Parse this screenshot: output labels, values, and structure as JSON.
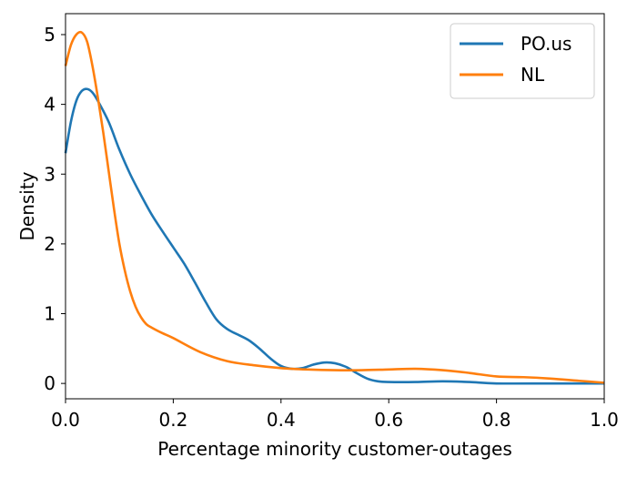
{
  "chart_data": {
    "type": "line",
    "title": "",
    "xlabel": "Percentage minority customer-outages",
    "ylabel": "Density",
    "xlim": [
      0.0,
      1.0
    ],
    "ylim": [
      -0.22,
      5.3
    ],
    "x_ticks": [
      0.0,
      0.2,
      0.4,
      0.6,
      0.8,
      1.0
    ],
    "x_tick_labels": [
      "0.0",
      "0.2",
      "0.4",
      "0.6",
      "0.8",
      "1.0"
    ],
    "y_ticks": [
      0,
      1,
      2,
      3,
      4,
      5
    ],
    "y_tick_labels": [
      "0",
      "1",
      "2",
      "3",
      "4",
      "5"
    ],
    "grid": false,
    "legend": "top-right",
    "series": [
      {
        "name": "PO.us",
        "color": "#1f77b4",
        "points": [
          [
            0.0,
            3.3
          ],
          [
            0.01,
            3.75
          ],
          [
            0.02,
            4.05
          ],
          [
            0.03,
            4.19
          ],
          [
            0.04,
            4.22
          ],
          [
            0.05,
            4.17
          ],
          [
            0.06,
            4.05
          ],
          [
            0.08,
            3.75
          ],
          [
            0.1,
            3.35
          ],
          [
            0.12,
            3.0
          ],
          [
            0.14,
            2.7
          ],
          [
            0.16,
            2.42
          ],
          [
            0.18,
            2.18
          ],
          [
            0.2,
            1.95
          ],
          [
            0.22,
            1.72
          ],
          [
            0.24,
            1.45
          ],
          [
            0.26,
            1.17
          ],
          [
            0.28,
            0.92
          ],
          [
            0.3,
            0.78
          ],
          [
            0.32,
            0.7
          ],
          [
            0.34,
            0.62
          ],
          [
            0.36,
            0.5
          ],
          [
            0.38,
            0.36
          ],
          [
            0.4,
            0.25
          ],
          [
            0.42,
            0.21
          ],
          [
            0.44,
            0.22
          ],
          [
            0.46,
            0.27
          ],
          [
            0.48,
            0.3
          ],
          [
            0.5,
            0.29
          ],
          [
            0.52,
            0.24
          ],
          [
            0.54,
            0.15
          ],
          [
            0.56,
            0.07
          ],
          [
            0.58,
            0.03
          ],
          [
            0.6,
            0.02
          ],
          [
            0.65,
            0.02
          ],
          [
            0.7,
            0.03
          ],
          [
            0.75,
            0.02
          ],
          [
            0.8,
            0.0
          ],
          [
            0.9,
            0.0
          ],
          [
            1.0,
            0.0
          ]
        ]
      },
      {
        "name": "NL",
        "color": "#ff7f0e",
        "points": [
          [
            0.0,
            4.55
          ],
          [
            0.01,
            4.85
          ],
          [
            0.02,
            5.0
          ],
          [
            0.03,
            5.03
          ],
          [
            0.04,
            4.9
          ],
          [
            0.05,
            4.55
          ],
          [
            0.06,
            4.1
          ],
          [
            0.07,
            3.6
          ],
          [
            0.08,
            3.05
          ],
          [
            0.09,
            2.5
          ],
          [
            0.1,
            2.0
          ],
          [
            0.11,
            1.62
          ],
          [
            0.12,
            1.32
          ],
          [
            0.13,
            1.1
          ],
          [
            0.14,
            0.95
          ],
          [
            0.15,
            0.85
          ],
          [
            0.16,
            0.8
          ],
          [
            0.18,
            0.72
          ],
          [
            0.2,
            0.65
          ],
          [
            0.25,
            0.45
          ],
          [
            0.3,
            0.32
          ],
          [
            0.35,
            0.26
          ],
          [
            0.4,
            0.22
          ],
          [
            0.45,
            0.2
          ],
          [
            0.5,
            0.19
          ],
          [
            0.55,
            0.19
          ],
          [
            0.6,
            0.2
          ],
          [
            0.65,
            0.21
          ],
          [
            0.7,
            0.19
          ],
          [
            0.75,
            0.15
          ],
          [
            0.8,
            0.1
          ],
          [
            0.85,
            0.09
          ],
          [
            0.9,
            0.07
          ],
          [
            0.95,
            0.04
          ],
          [
            1.0,
            0.01
          ]
        ]
      }
    ]
  }
}
